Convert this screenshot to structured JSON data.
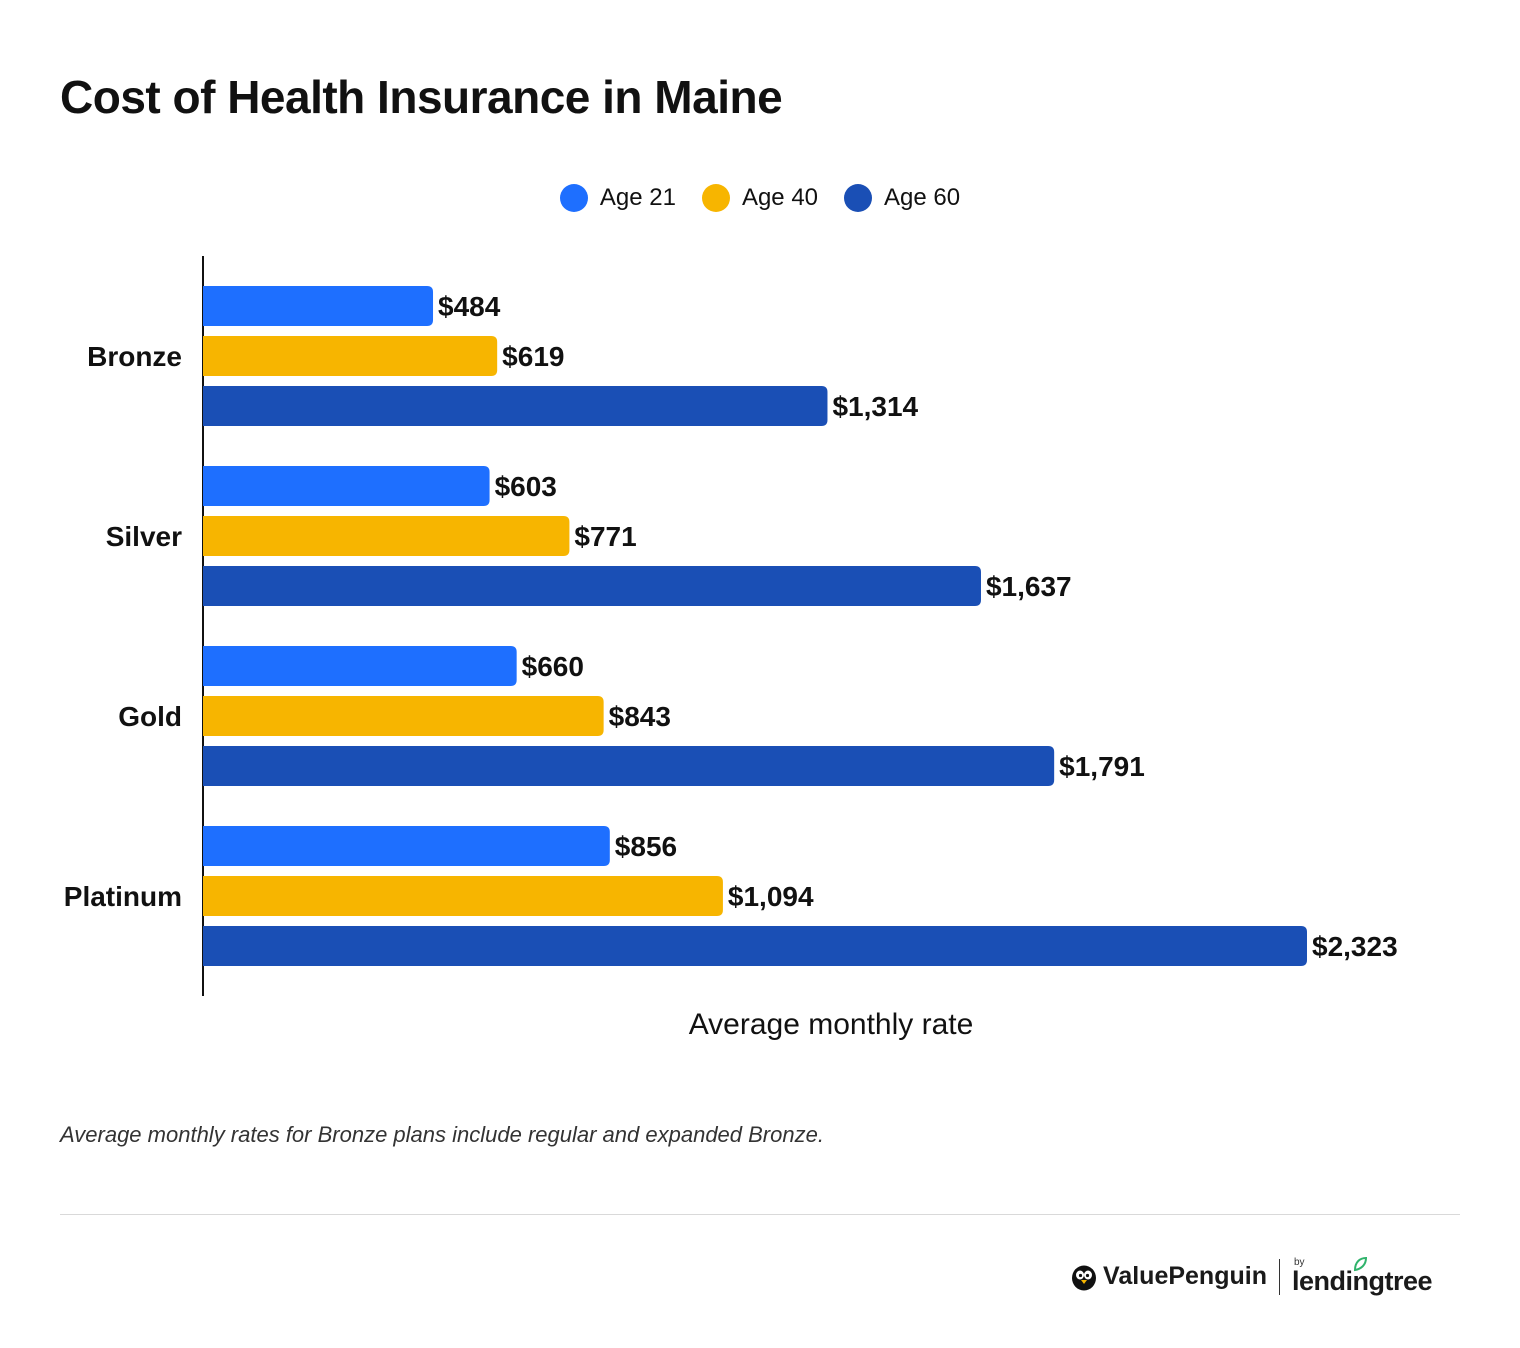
{
  "title": "Cost of Health Insurance in Maine",
  "footnote": "Average monthly rates for Bronze plans include regular and expanded Bronze.",
  "brand": {
    "valuepenguin": "ValuePenguin",
    "by": "by",
    "lendingtree": "lendingtree",
    "icons": [
      "penguin-icon",
      "leaf-icon"
    ]
  },
  "chart_data": {
    "type": "bar",
    "orientation": "horizontal",
    "title": "Cost of Health Insurance in Maine",
    "xlabel": "Average monthly rate",
    "ylabel": "",
    "categories": [
      "Bronze",
      "Silver",
      "Gold",
      "Platinum"
    ],
    "series": [
      {
        "name": "Age 21",
        "color": "#1e6fff",
        "values": [
          484,
          603,
          660,
          856
        ],
        "labels": [
          "$484",
          "$603",
          "$660",
          "$856"
        ]
      },
      {
        "name": "Age 40",
        "color": "#f7b500",
        "values": [
          619,
          771,
          843,
          1094
        ],
        "labels": [
          "$619",
          "$771",
          "$843",
          "$1,094"
        ]
      },
      {
        "name": "Age 60",
        "color": "#1a4fb5",
        "values": [
          1314,
          1637,
          1791,
          2323
        ],
        "labels": [
          "$1,314",
          "$1,637",
          "$1,791",
          "$2,323"
        ]
      }
    ],
    "xlim": [
      0,
      2323
    ],
    "grid": false,
    "legend": "top-center"
  }
}
